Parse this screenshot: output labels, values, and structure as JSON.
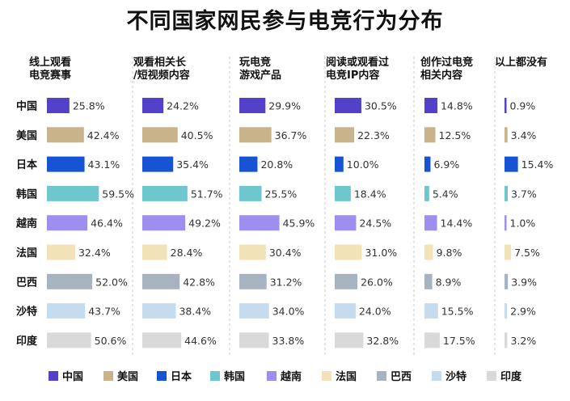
{
  "chart_data": {
    "type": "bar",
    "title": "不同国家网民参与电竞行为分布",
    "orientation": "horizontal",
    "layout": "small-multiples",
    "categories": [
      "中国",
      "美国",
      "日本",
      "韩国",
      "越南",
      "法国",
      "巴西",
      "沙特",
      "印度"
    ],
    "colors": [
      "#5342c9",
      "#c8b38a",
      "#1654d4",
      "#6ec6cf",
      "#9e8ef0",
      "#f2e2b8",
      "#a8b3c2",
      "#c5dcef",
      "#d9d9d9"
    ],
    "value_suffix": "%",
    "panels": [
      {
        "label": "线上观看\n电竞赛事",
        "values": [
          25.8,
          42.4,
          43.1,
          59.5,
          46.4,
          32.4,
          52.0,
          43.7,
          50.6
        ]
      },
      {
        "label": "观看相关长\n/短视频内容",
        "values": [
          24.2,
          40.5,
          35.4,
          51.7,
          49.2,
          28.4,
          42.8,
          38.4,
          44.6
        ]
      },
      {
        "label": "玩电竞\n游戏产品",
        "values": [
          29.9,
          36.7,
          20.8,
          25.5,
          45.9,
          30.4,
          31.2,
          34.0,
          33.8
        ]
      },
      {
        "label": "阅读或观看过\n电竞IP内容",
        "values": [
          30.5,
          22.3,
          10.0,
          18.4,
          24.5,
          31.0,
          26.0,
          24.0,
          32.8
        ]
      },
      {
        "label": "创作过电竞\n相关内容",
        "values": [
          14.8,
          12.5,
          6.9,
          5.4,
          14.4,
          9.8,
          8.9,
          15.5,
          17.5
        ]
      },
      {
        "label": "以上都没有",
        "values": [
          0.9,
          3.4,
          15.4,
          3.7,
          1.0,
          7.5,
          3.9,
          2.9,
          3.2
        ]
      }
    ],
    "legend": [
      "中国",
      "美国",
      "日本",
      "韩国",
      "越南",
      "法国",
      "巴西",
      "沙特",
      "印度"
    ],
    "legend_position": "bottom"
  }
}
